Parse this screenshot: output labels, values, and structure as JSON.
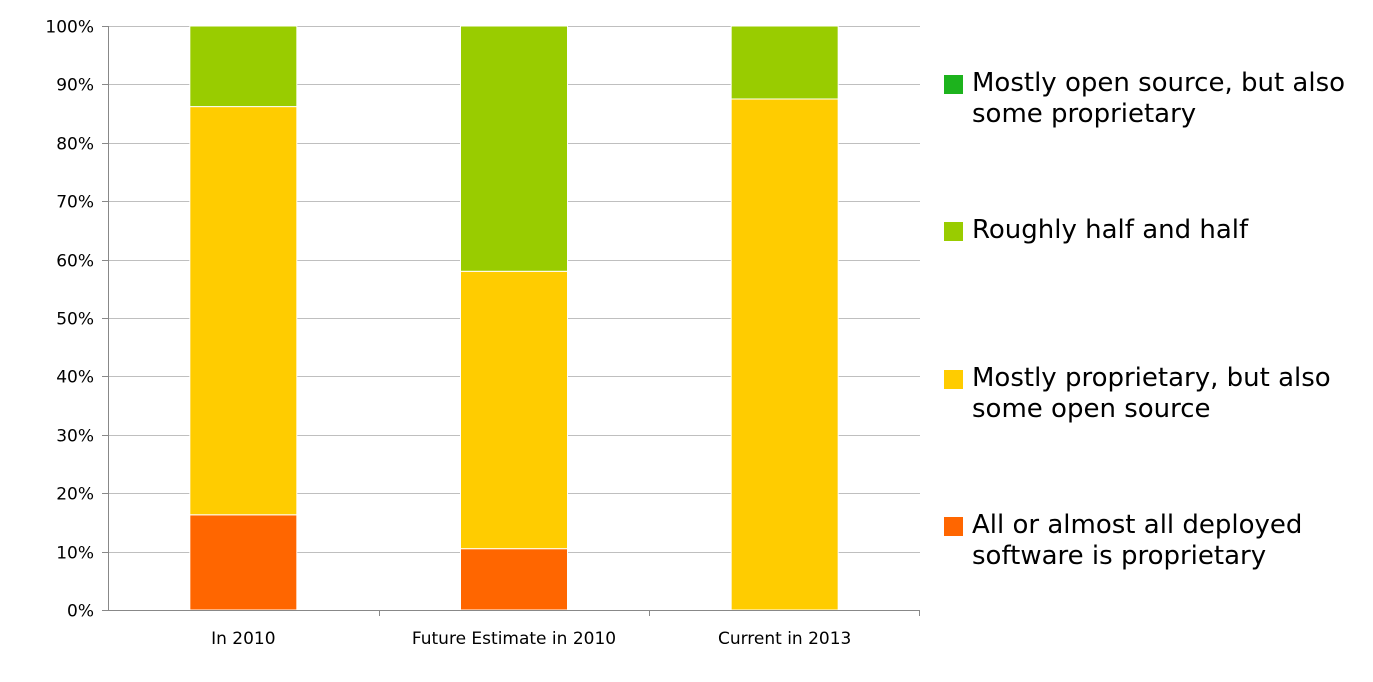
{
  "chart_data": {
    "type": "bar",
    "stacked": true,
    "percent": true,
    "categories": [
      "In 2010",
      "Future Estimate in 2010",
      "Current in 2013"
    ],
    "series": [
      {
        "name": "All or almost all deployed software is proprietary",
        "color": "#FF6600",
        "values": [
          16.3,
          10.5,
          0
        ]
      },
      {
        "name": "Mostly proprietary, but also some open source",
        "color": "#FFCC00",
        "values": [
          69.9,
          47.5,
          87.5
        ]
      },
      {
        "name": "Roughly half and half",
        "color": "#99CC00",
        "values": [
          13.8,
          42.0,
          12.5
        ]
      },
      {
        "name": "Mostly open source, but also some proprietary",
        "color": "#1DB31D",
        "values": [
          0,
          0,
          0
        ]
      }
    ],
    "yticks": [
      "0%",
      "10%",
      "20%",
      "30%",
      "40%",
      "50%",
      "60%",
      "70%",
      "80%",
      "90%",
      "100%"
    ],
    "ylim": [
      0,
      100
    ],
    "grid": true,
    "legend_position": "right"
  },
  "legend": [
    {
      "label": "Mostly open source, but also some proprietary",
      "color": "#1DB31D"
    },
    {
      "label": "Roughly half and half",
      "color": "#99CC00"
    },
    {
      "label": "Mostly proprietary, but also some open source",
      "color": "#FFCC00"
    },
    {
      "label": "All or almost all deployed software is proprietary",
      "color": "#FF6600"
    }
  ]
}
